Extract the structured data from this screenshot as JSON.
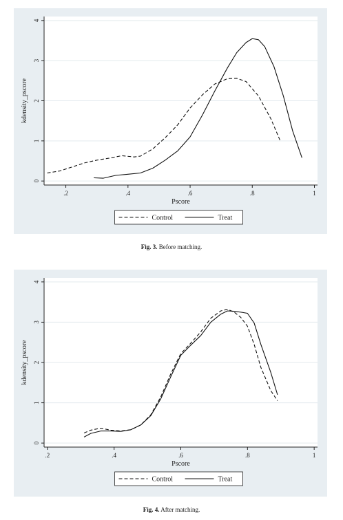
{
  "figures": [
    {
      "caption_num": "Fig. 3.",
      "caption_text": "Before matching."
    },
    {
      "caption_num": "Fig. 4.",
      "caption_text": "After matching."
    }
  ],
  "chart_data": [
    {
      "type": "line",
      "xlabel": "Pscore",
      "ylabel": "kdensity_pscore",
      "xlim": [
        0.13,
        1.01
      ],
      "ylim": [
        -0.1,
        4.1
      ],
      "x_ticks": [
        ".2",
        ".4",
        ".6",
        ".8",
        "1"
      ],
      "y_ticks": [
        "0",
        "1",
        "2",
        "3",
        "4"
      ],
      "grid": true,
      "legend_position": "bottom",
      "series": [
        {
          "name": "Control",
          "style": "dashed",
          "x": [
            0.14,
            0.18,
            0.22,
            0.26,
            0.3,
            0.34,
            0.38,
            0.42,
            0.44,
            0.48,
            0.52,
            0.56,
            0.6,
            0.64,
            0.68,
            0.72,
            0.75,
            0.78,
            0.82,
            0.86,
            0.89
          ],
          "y": [
            0.2,
            0.25,
            0.35,
            0.45,
            0.52,
            0.57,
            0.63,
            0.6,
            0.62,
            0.8,
            1.08,
            1.4,
            1.82,
            2.15,
            2.42,
            2.55,
            2.56,
            2.48,
            2.12,
            1.55,
            1.0
          ]
        },
        {
          "name": "Treat",
          "style": "solid",
          "x": [
            0.29,
            0.32,
            0.36,
            0.4,
            0.44,
            0.48,
            0.52,
            0.56,
            0.6,
            0.64,
            0.68,
            0.72,
            0.75,
            0.78,
            0.8,
            0.82,
            0.84,
            0.87,
            0.9,
            0.93,
            0.96
          ],
          "y": [
            0.08,
            0.07,
            0.14,
            0.17,
            0.2,
            0.32,
            0.52,
            0.75,
            1.1,
            1.65,
            2.25,
            2.82,
            3.2,
            3.45,
            3.55,
            3.52,
            3.35,
            2.85,
            2.12,
            1.25,
            0.58
          ]
        }
      ]
    },
    {
      "type": "line",
      "xlabel": "Pscore",
      "ylabel": "kdensity_pscore",
      "xlim": [
        0.19,
        1.01
      ],
      "ylim": [
        -0.1,
        4.1
      ],
      "x_ticks": [
        ".2",
        ".4",
        ".6",
        ".8",
        "1"
      ],
      "y_ticks": [
        "0",
        "1",
        "2",
        "3",
        "4"
      ],
      "grid": true,
      "legend_position": "bottom",
      "series": [
        {
          "name": "Control",
          "style": "dashed",
          "x": [
            0.31,
            0.33,
            0.36,
            0.39,
            0.42,
            0.45,
            0.48,
            0.51,
            0.54,
            0.57,
            0.6,
            0.63,
            0.66,
            0.69,
            0.72,
            0.74,
            0.76,
            0.78,
            0.8,
            0.82,
            0.84,
            0.87,
            0.89
          ],
          "y": [
            0.25,
            0.32,
            0.37,
            0.32,
            0.3,
            0.33,
            0.45,
            0.7,
            1.15,
            1.72,
            2.22,
            2.48,
            2.76,
            3.1,
            3.28,
            3.32,
            3.25,
            3.12,
            2.9,
            2.45,
            1.88,
            1.3,
            1.05
          ]
        },
        {
          "name": "Treat",
          "style": "solid",
          "x": [
            0.31,
            0.33,
            0.36,
            0.39,
            0.42,
            0.45,
            0.48,
            0.51,
            0.54,
            0.57,
            0.6,
            0.63,
            0.66,
            0.69,
            0.72,
            0.74,
            0.76,
            0.78,
            0.8,
            0.82,
            0.84,
            0.87,
            0.89
          ],
          "y": [
            0.15,
            0.24,
            0.3,
            0.3,
            0.29,
            0.33,
            0.45,
            0.68,
            1.1,
            1.65,
            2.18,
            2.43,
            2.67,
            3.0,
            3.2,
            3.28,
            3.27,
            3.25,
            3.22,
            2.98,
            2.45,
            1.75,
            1.2
          ]
        }
      ]
    }
  ]
}
